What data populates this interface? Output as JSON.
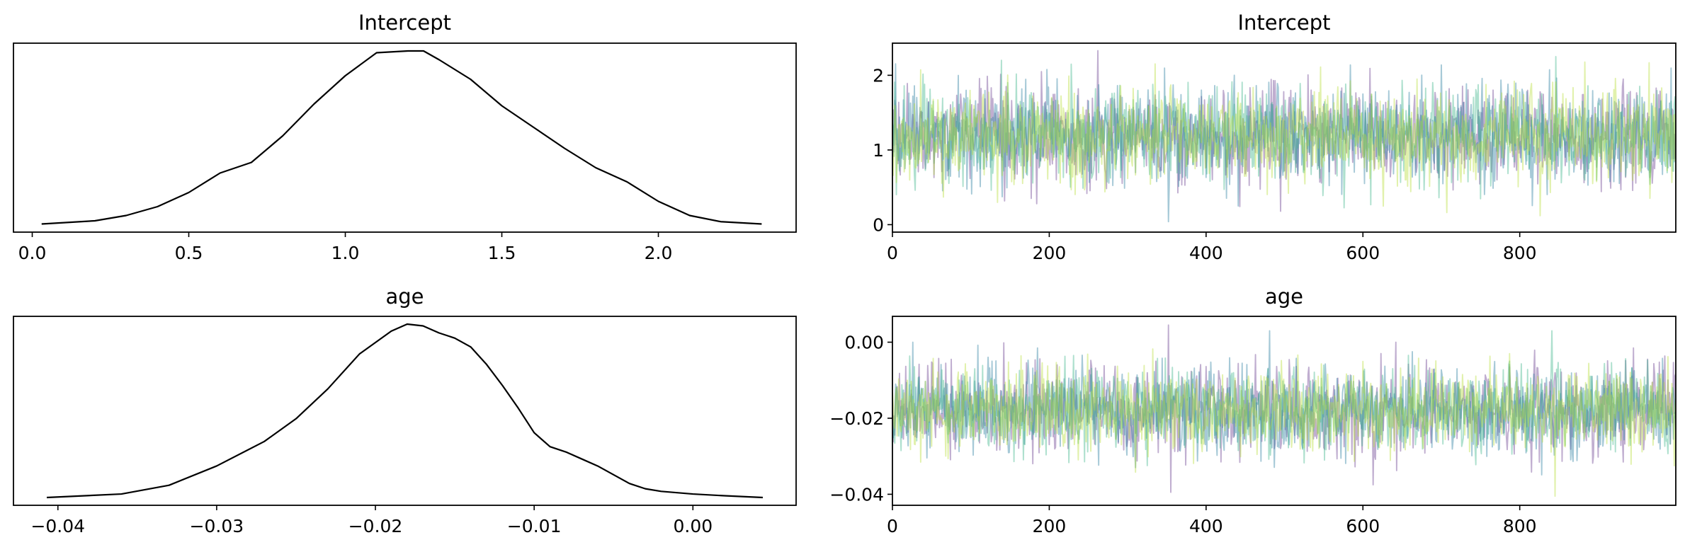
{
  "figure": {
    "background": "#ffffff",
    "chain_colors": [
      "#6a3d8f",
      "#2a7fa0",
      "#3fb58a",
      "#b7dd3a"
    ]
  },
  "chart_data": [
    {
      "type": "line",
      "kind": "density",
      "title": "Intercept",
      "xlabel": "",
      "ylabel": "",
      "xlim": [
        -0.06,
        2.44
      ],
      "xticks": [
        0.0,
        0.5,
        1.0,
        1.5,
        2.0
      ],
      "xtick_labels": [
        "0.0",
        "0.5",
        "1.0",
        "1.5",
        "2.0"
      ],
      "show_yticks": false,
      "color": "#000000",
      "x": [
        0.03,
        0.2,
        0.3,
        0.4,
        0.5,
        0.6,
        0.7,
        0.8,
        0.9,
        1.0,
        1.1,
        1.2,
        1.25,
        1.3,
        1.4,
        1.5,
        1.6,
        1.7,
        1.8,
        1.9,
        2.0,
        2.1,
        2.2,
        2.33
      ],
      "y": [
        0.002,
        0.02,
        0.05,
        0.1,
        0.18,
        0.29,
        0.35,
        0.5,
        0.68,
        0.84,
        0.97,
        0.98,
        0.98,
        0.93,
        0.82,
        0.67,
        0.55,
        0.43,
        0.32,
        0.24,
        0.13,
        0.05,
        0.015,
        0.002
      ]
    },
    {
      "type": "line",
      "kind": "trace",
      "title": "Intercept",
      "xlabel": "",
      "ylabel": "",
      "xlim": [
        0,
        999
      ],
      "ylim": [
        -0.1,
        2.43
      ],
      "xticks": [
        0,
        200,
        400,
        600,
        800
      ],
      "xtick_labels": [
        "0",
        "200",
        "400",
        "600",
        "800"
      ],
      "yticks": [
        0,
        1,
        2
      ],
      "ytick_labels": [
        "0",
        "1",
        "2"
      ],
      "n_draws": 1000,
      "chains": 4,
      "center": 1.2,
      "spread": 0.32,
      "extremes": [
        {
          "draw": 262,
          "value": 2.33
        },
        {
          "draw": 352,
          "value": 0.04
        },
        {
          "draw": 846,
          "value": 2.25
        },
        {
          "draw": 826,
          "value": 0.12
        },
        {
          "draw": 495,
          "value": 0.18
        }
      ]
    },
    {
      "type": "line",
      "kind": "density",
      "title": "age",
      "xlabel": "",
      "ylabel": "",
      "xlim": [
        -0.0428,
        0.0065
      ],
      "xticks": [
        -0.04,
        -0.03,
        -0.02,
        -0.01,
        0.0
      ],
      "xtick_labels": [
        "−0.04",
        "−0.03",
        "−0.02",
        "−0.01",
        "0.00"
      ],
      "show_yticks": false,
      "color": "#000000",
      "x": [
        -0.0407,
        -0.036,
        -0.033,
        -0.03,
        -0.027,
        -0.025,
        -0.023,
        -0.021,
        -0.019,
        -0.018,
        -0.017,
        -0.016,
        -0.015,
        -0.014,
        -0.013,
        -0.012,
        -0.011,
        -0.01,
        -0.009,
        -0.008,
        -0.007,
        -0.006,
        -0.005,
        -0.004,
        -0.003,
        -0.002,
        0.0,
        0.002,
        0.0044
      ],
      "y": [
        0.0,
        0.02,
        0.07,
        0.18,
        0.32,
        0.45,
        0.62,
        0.82,
        0.95,
        0.99,
        0.98,
        0.94,
        0.91,
        0.86,
        0.76,
        0.64,
        0.51,
        0.37,
        0.29,
        0.26,
        0.22,
        0.18,
        0.13,
        0.08,
        0.05,
        0.035,
        0.02,
        0.01,
        0.0
      ]
    },
    {
      "type": "line",
      "kind": "trace",
      "title": "age",
      "xlabel": "",
      "ylabel": "",
      "xlim": [
        0,
        999
      ],
      "ylim": [
        -0.0429,
        0.0068
      ],
      "xticks": [
        0,
        200,
        400,
        600,
        800
      ],
      "xtick_labels": [
        "0",
        "200",
        "400",
        "600",
        "800"
      ],
      "yticks": [
        -0.04,
        -0.02,
        0.0
      ],
      "ytick_labels": [
        "−0.04",
        "−0.02",
        "0.00"
      ],
      "n_draws": 1000,
      "chains": 4,
      "center": -0.0178,
      "spread": 0.0055,
      "extremes": [
        {
          "draw": 352,
          "value": 0.0045
        },
        {
          "draw": 481,
          "value": 0.003
        },
        {
          "draw": 841,
          "value": 0.003
        },
        {
          "draw": 845,
          "value": -0.0405
        },
        {
          "draw": 613,
          "value": -0.0375
        }
      ]
    }
  ]
}
